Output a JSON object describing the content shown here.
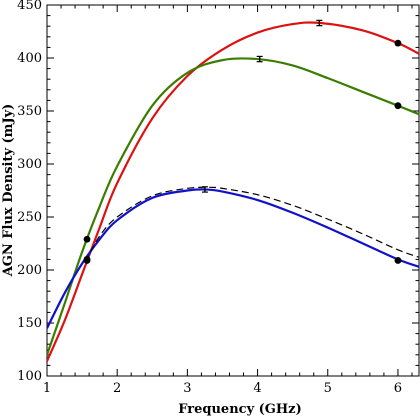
{
  "chart_data": {
    "type": "line",
    "title": "",
    "xlabel": "Frequency (GHz)",
    "ylabel": "AGN Flux Density (mJy)",
    "xlim": [
      1,
      6.3
    ],
    "ylim": [
      100,
      450
    ],
    "xticks": [
      1,
      2,
      3,
      4,
      5,
      6
    ],
    "yticks": [
      100,
      150,
      200,
      250,
      300,
      350,
      400,
      450
    ],
    "grid": false,
    "legend": "none",
    "series": [
      {
        "color": "#dd1111",
        "style": "solid",
        "x": [
          1.0,
          1.25,
          1.5,
          1.75,
          2.0,
          2.5,
          3.0,
          3.5,
          4.0,
          4.5,
          4.9,
          5.5,
          6.0,
          6.3
        ],
        "y": [
          114,
          152,
          196,
          240,
          282,
          343,
          383,
          408,
          424,
          432,
          433,
          426,
          414,
          404
        ],
        "points": [
          {
            "x": 1.57,
            "y": 210
          },
          {
            "x": 6.0,
            "y": 414
          }
        ],
        "errorbars": [
          {
            "x": 4.88,
            "y": 433,
            "err": 2.5
          }
        ]
      },
      {
        "color": "#3a7d00",
        "style": "solid",
        "x": [
          1.0,
          1.25,
          1.5,
          1.75,
          2.0,
          2.5,
          3.0,
          3.5,
          4.0,
          4.5,
          5.0,
          5.5,
          6.0,
          6.3
        ],
        "y": [
          120,
          168,
          217,
          260,
          298,
          355,
          386,
          398,
          399,
          393,
          381,
          368,
          355,
          347
        ],
        "points": [
          {
            "x": 1.57,
            "y": 229
          },
          {
            "x": 6.0,
            "y": 355
          }
        ],
        "errorbars": [
          {
            "x": 4.03,
            "y": 399,
            "err": 2.5
          }
        ]
      },
      {
        "color": "#1111cc",
        "style": "solid",
        "x": [
          1.0,
          1.25,
          1.5,
          1.75,
          2.0,
          2.5,
          3.0,
          3.25,
          3.5,
          4.0,
          4.5,
          5.0,
          5.5,
          6.0,
          6.3
        ],
        "y": [
          145,
          178,
          206,
          229,
          247,
          268,
          275,
          276,
          274,
          266,
          254,
          240,
          225,
          210,
          203
        ],
        "points": [
          {
            "x": 1.57,
            "y": 209
          },
          {
            "x": 6.0,
            "y": 209
          }
        ],
        "errorbars": [
          {
            "x": 3.25,
            "y": 276,
            "err": 2.5
          }
        ]
      },
      {
        "color": "#000000",
        "style": "dashed",
        "x": [
          1.55,
          1.75,
          2.0,
          2.5,
          3.0,
          3.3,
          3.5,
          4.0,
          4.5,
          5.0,
          5.5,
          6.0,
          6.3
        ],
        "y": [
          208,
          232,
          250,
          270,
          277,
          278,
          277,
          271,
          261,
          248,
          234,
          219,
          212
        ]
      }
    ]
  }
}
